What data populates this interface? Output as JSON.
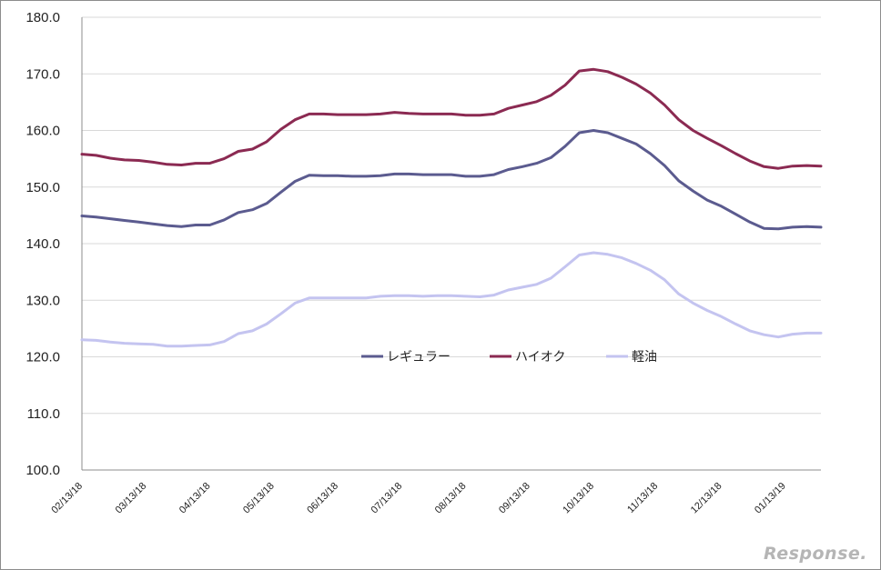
{
  "chart_data": {
    "type": "line",
    "title": "",
    "xlabel": "",
    "ylabel": "",
    "ylim": [
      100,
      180
    ],
    "yticks": [
      "100.0",
      "110.0",
      "120.0",
      "130.0",
      "140.0",
      "150.0",
      "160.0",
      "170.0",
      "180.0"
    ],
    "x_tick_labels": [
      "02/13/18",
      "03/13/18",
      "04/13/18",
      "05/13/18",
      "06/13/18",
      "07/13/18",
      "08/13/18",
      "09/13/18",
      "10/13/18",
      "11/13/18",
      "12/13/18",
      "01/13/19"
    ],
    "grid": true,
    "legend_position": "center",
    "series": [
      {
        "name": "レギュラー",
        "color": "#5b5b8f",
        "values": [
          144.9,
          144.7,
          144.4,
          144.1,
          143.8,
          143.5,
          143.2,
          143.0,
          143.3,
          143.3,
          144.2,
          145.5,
          146.0,
          147.1,
          149.1,
          151.0,
          152.1,
          152.0,
          152.0,
          151.9,
          151.9,
          152.0,
          152.3,
          152.3,
          152.2,
          152.2,
          152.2,
          151.9,
          151.9,
          152.2,
          153.1,
          153.6,
          154.2,
          155.2,
          157.2,
          159.6,
          160.0,
          159.6,
          158.6,
          157.6,
          155.9,
          153.8,
          151.1,
          149.3,
          147.7,
          146.6,
          145.2,
          143.8,
          142.7,
          142.6,
          142.9,
          143.0,
          142.9
        ]
      },
      {
        "name": "ハイオク",
        "color": "#8b2a52",
        "values": [
          155.8,
          155.6,
          155.1,
          154.8,
          154.7,
          154.4,
          154.0,
          153.9,
          154.2,
          154.2,
          155.0,
          156.3,
          156.7,
          158.0,
          160.2,
          161.9,
          162.9,
          162.9,
          162.8,
          162.8,
          162.8,
          162.9,
          163.2,
          163.0,
          162.9,
          162.9,
          162.9,
          162.7,
          162.7,
          162.9,
          163.9,
          164.5,
          165.1,
          166.2,
          168.0,
          170.5,
          170.8,
          170.4,
          169.4,
          168.2,
          166.6,
          164.5,
          161.9,
          160.0,
          158.6,
          157.3,
          155.9,
          154.6,
          153.6,
          153.3,
          153.7,
          153.8,
          153.7
        ]
      },
      {
        "name": "軽油",
        "color": "#c4c4f0",
        "values": [
          123.0,
          122.9,
          122.6,
          122.4,
          122.3,
          122.2,
          121.9,
          121.9,
          122.0,
          122.1,
          122.7,
          124.1,
          124.6,
          125.8,
          127.6,
          129.5,
          130.4,
          130.4,
          130.4,
          130.4,
          130.4,
          130.7,
          130.8,
          130.8,
          130.7,
          130.8,
          130.8,
          130.7,
          130.6,
          130.9,
          131.8,
          132.3,
          132.8,
          133.9,
          135.9,
          138.0,
          138.4,
          138.1,
          137.5,
          136.5,
          135.3,
          133.6,
          131.1,
          129.5,
          128.2,
          127.1,
          125.8,
          124.6,
          123.9,
          123.5,
          124.0,
          124.2,
          124.2
        ]
      }
    ]
  },
  "watermark": "Response."
}
